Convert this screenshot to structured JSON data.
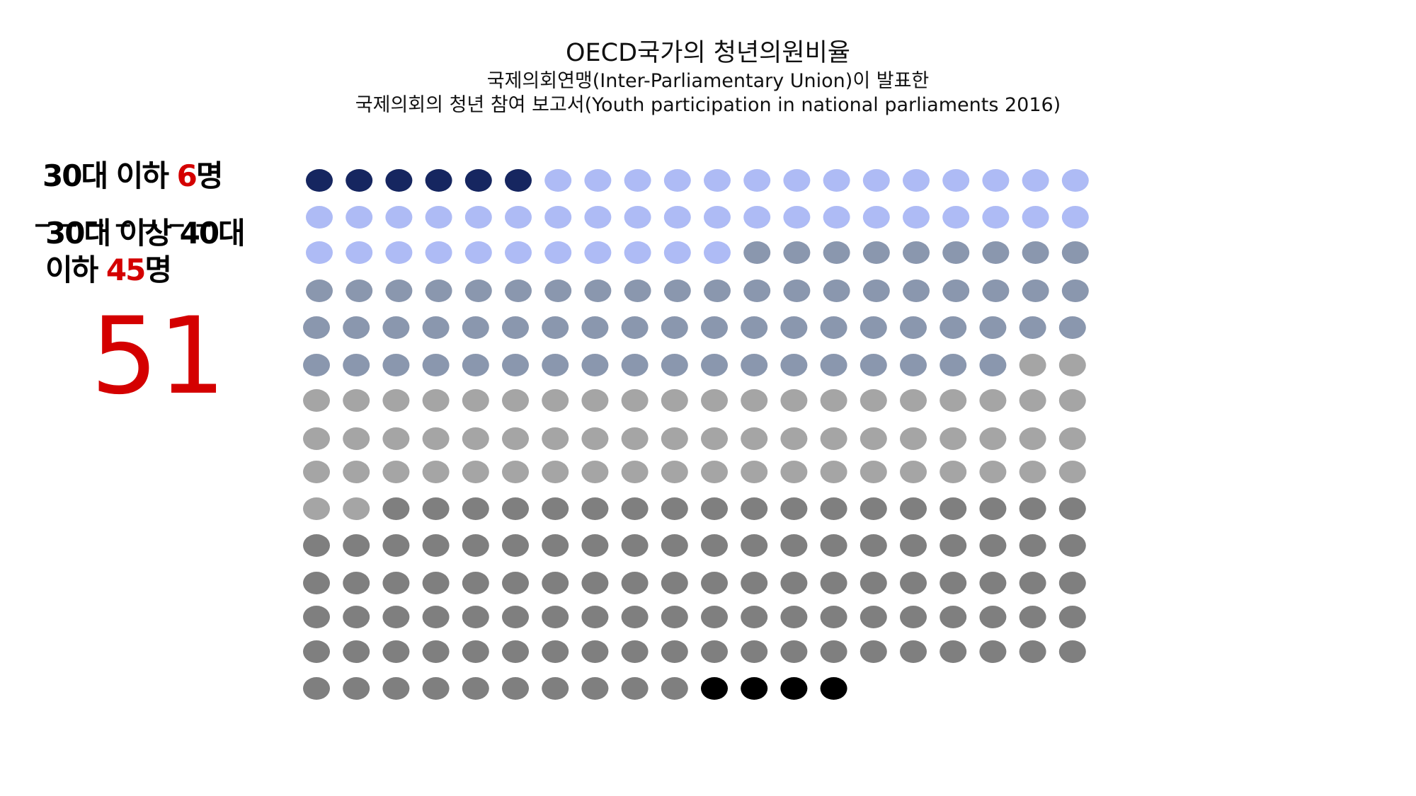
{
  "title": "OECD국가의 청년의원비율",
  "subtitle1": "국제의회연맹(Inter-Parliamentary Union)이 발표한",
  "subtitle2": "국제의회의 청년 참여 보고서(Youth participation in national parliaments 2016)",
  "legend": {
    "under30_label": "30대 이하 ",
    "under30_count": "6",
    "under30_unit": "명",
    "divider": "_ _ _ _ _ _ _",
    "range_label": "30대 이상 40대 이하 ",
    "range_count": "45",
    "range_unit": "명",
    "total": "51"
  },
  "chart_data": {
    "type": "waffle",
    "title": "OECD국가의 청년의원비율",
    "rows": 15,
    "columns": 20,
    "total_dots": 294,
    "categories": [
      {
        "name": "30대 이하",
        "count": 6,
        "color": "#162660"
      },
      {
        "name": "30대 이상 40대 이하",
        "count": 45,
        "color": "#aebbf5"
      },
      {
        "count": 67,
        "color": "#8a97ae"
      },
      {
        "count": 64,
        "color": "#a5a5a5"
      },
      {
        "count": 108,
        "color": "#7f7f7f"
      },
      {
        "count": 4,
        "color": "#000000"
      }
    ]
  }
}
